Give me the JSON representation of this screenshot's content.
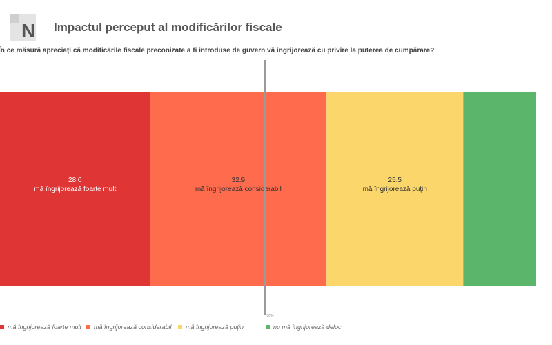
{
  "header": {
    "title": "Impactul perceput al modificărilor fiscale",
    "logo_text": "N"
  },
  "question": "În ce măsură apreciați că modificările fiscale preconizate a fi introduse de guvern vă îngrijorează cu privire la puterea de cumpărare?",
  "chart_data": {
    "type": "bar",
    "orientation": "horizontal-stacked-100",
    "categories": [
      "mă îngrijorează foarte mult",
      "mă îngrijorează considerabil",
      "mă îngrijorează puțin",
      "nu mă îngrijorează deloc"
    ],
    "values": [
      28.0,
      32.9,
      25.5,
      13.6
    ],
    "value_labels": [
      "28.0",
      "32.9",
      "25.5",
      ""
    ],
    "colors": [
      "#e03535",
      "#ff6b4d",
      "#fad66b",
      "#5bb56a"
    ],
    "label_colors": [
      "light",
      "dark",
      "dark",
      "dark"
    ],
    "reference_line": {
      "value": 50,
      "label": "50%"
    },
    "legend_position": "bottom",
    "xlim": [
      0,
      100
    ],
    "legend": [
      {
        "label": "mă îngrijorează foarte mult",
        "color": "#e03535"
      },
      {
        "label": "mă îngrijorează considerabil",
        "color": "#ff6b4d"
      },
      {
        "label": "mă îngrijorează puțin",
        "color": "#fad66b"
      },
      {
        "label": "nu mă îngrijorează deloc",
        "color": "#5bb56a"
      }
    ]
  }
}
